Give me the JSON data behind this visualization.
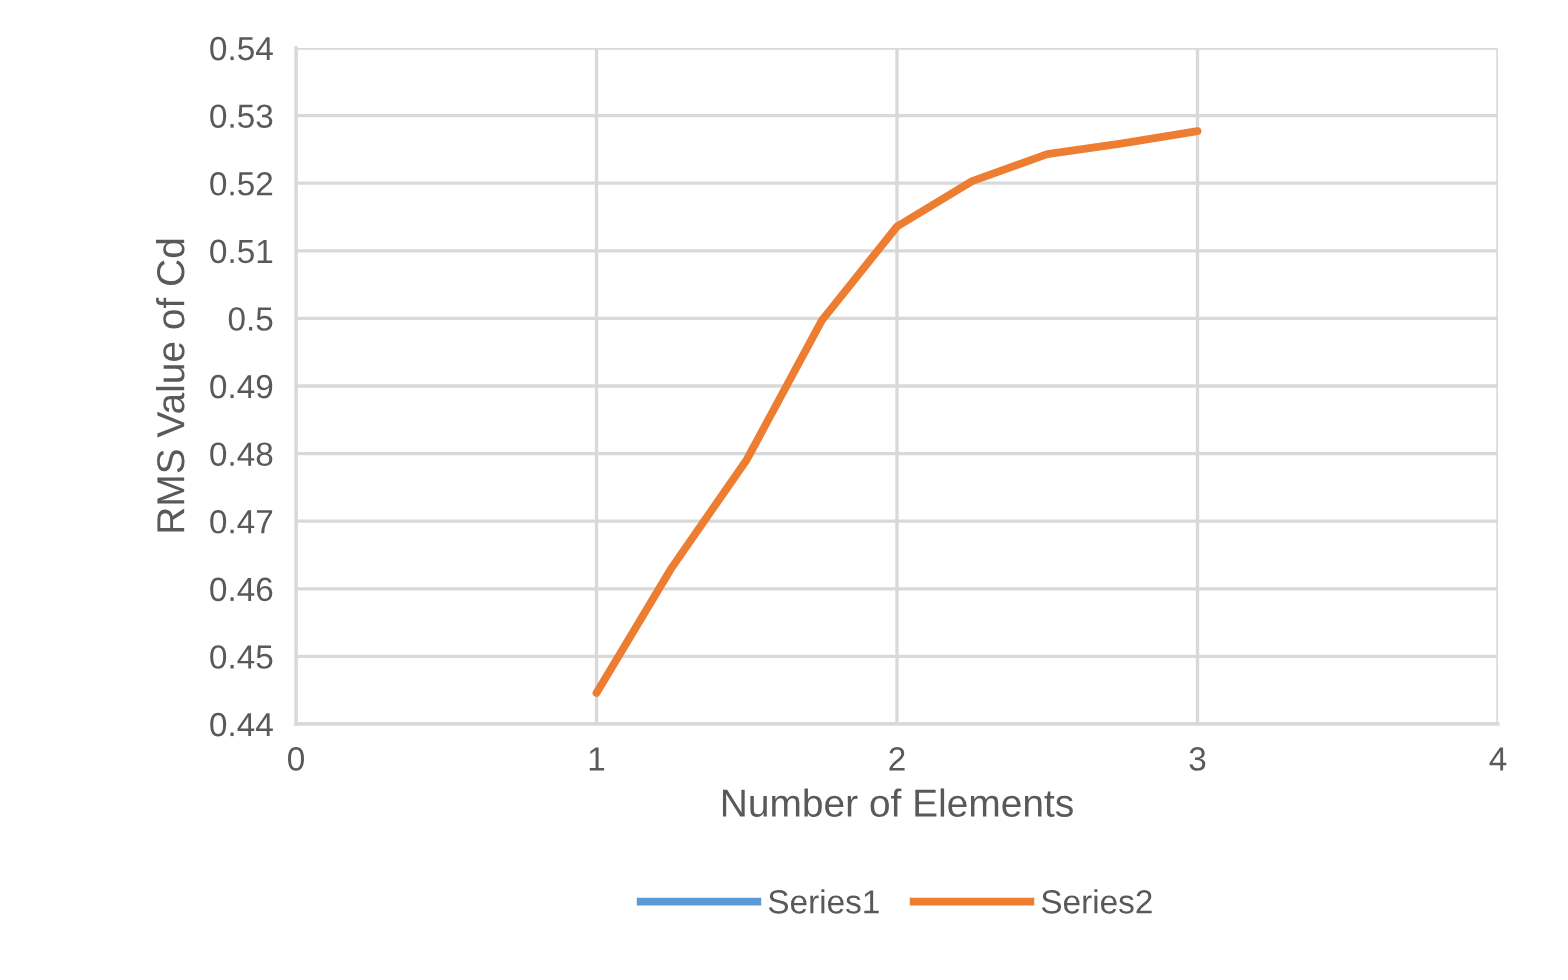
{
  "chart_data": {
    "type": "line",
    "xlabel": "Number of Elements",
    "ylabel": "RMS Value of Cd",
    "x": [
      1,
      1.25,
      1.5,
      1.75,
      2,
      2.25,
      2.5,
      2.75,
      3
    ],
    "series": [
      {
        "name": "Series1",
        "color": "#5b9bd5",
        "values": [
          null,
          null,
          null,
          null,
          null,
          null,
          null,
          null,
          null
        ]
      },
      {
        "name": "Series2",
        "color": "#ed7d31",
        "values": [
          0.4446,
          0.4631,
          0.4791,
          0.4997,
          0.5136,
          0.5203,
          0.5243,
          0.5259,
          0.5277
        ]
      }
    ],
    "xlim": [
      0,
      4
    ],
    "xticks": [
      0,
      1,
      2,
      3,
      4
    ],
    "ylim": [
      0.44,
      0.54
    ],
    "yticks": [
      0.44,
      0.45,
      0.46,
      0.47,
      0.48,
      0.49,
      0.5,
      0.51,
      0.52,
      0.53,
      0.54
    ],
    "grid": true,
    "legend": "bottom",
    "marker": "none",
    "line_style": "solid"
  }
}
